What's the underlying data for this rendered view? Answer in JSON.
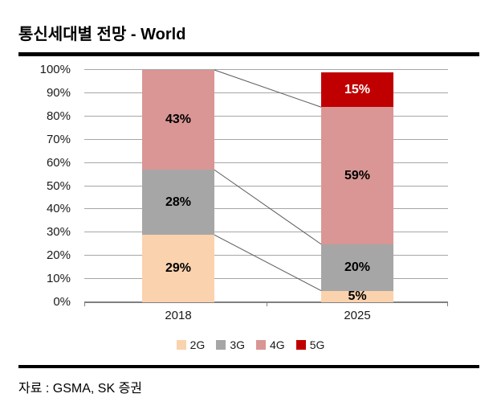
{
  "title": "통신세대별 전망 - World",
  "footer": {
    "source": "자료 : GSMA, SK 증권"
  },
  "chart_data": {
    "type": "bar",
    "variant": "stacked-column-100",
    "title": "통신세대별 전망 - World",
    "categories": [
      "2018",
      "2025"
    ],
    "series": [
      {
        "name": "2G",
        "color": "#FAD2AE",
        "label_color": "#000000",
        "values": [
          29,
          5
        ],
        "labels": [
          "29%",
          "5%"
        ]
      },
      {
        "name": "3G",
        "color": "#A6A6A6",
        "label_color": "#000000",
        "values": [
          28,
          20
        ],
        "labels": [
          "28%",
          "20%"
        ]
      },
      {
        "name": "4G",
        "color": "#D99694",
        "label_color": "#000000",
        "values": [
          43,
          59
        ],
        "labels": [
          "43%",
          "59%"
        ]
      },
      {
        "name": "5G",
        "color": "#C00000",
        "label_color": "#FFFFFF",
        "values": [
          0,
          15
        ],
        "labels": [
          "",
          "15%"
        ]
      }
    ],
    "yticks": [
      {
        "value": 0,
        "label": "0%"
      },
      {
        "value": 10,
        "label": "10%"
      },
      {
        "value": 20,
        "label": "20%"
      },
      {
        "value": 30,
        "label": "30%"
      },
      {
        "value": 40,
        "label": "40%"
      },
      {
        "value": 50,
        "label": "50%"
      },
      {
        "value": 60,
        "label": "60%"
      },
      {
        "value": 70,
        "label": "70%"
      },
      {
        "value": 80,
        "label": "80%"
      },
      {
        "value": 90,
        "label": "90%"
      },
      {
        "value": 100,
        "label": "100%"
      }
    ],
    "ylim": [
      0,
      100
    ],
    "grid": true,
    "legend_position": "bottom",
    "series_lines": true,
    "colors": {
      "gridline": "#A6A6A6",
      "axis": "#808080",
      "series_line": "#595959"
    }
  }
}
